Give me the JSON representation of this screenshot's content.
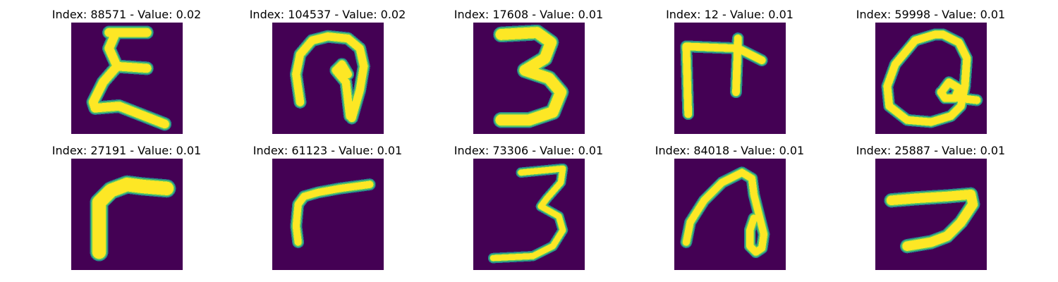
{
  "figure": {
    "panels": [
      {
        "title": "Index: 88571 - Value: 0.02",
        "glyph": "E"
      },
      {
        "title": "Index: 104537 - Value: 0.02",
        "glyph": "n"
      },
      {
        "title": "Index: 17608 - Value: 0.01",
        "glyph": "3"
      },
      {
        "title": "Index: 12 - Value: 0.01",
        "glyph": "F"
      },
      {
        "title": "Index: 59998 - Value: 0.01",
        "glyph": "Q"
      },
      {
        "title": "Index: 27191 - Value: 0.01",
        "glyph": "r"
      },
      {
        "title": "Index: 61123 - Value: 0.01",
        "glyph": "r"
      },
      {
        "title": "Index: 73306 - Value: 0.01",
        "glyph": "3"
      },
      {
        "title": "Index: 84018 - Value: 0.01",
        "glyph": "n"
      },
      {
        "title": "Index: 25887 - Value: 0.01",
        "glyph": "7"
      }
    ],
    "colors": {
      "background": "#ffffff",
      "image_background": "#440154",
      "stroke_core": "#fde725",
      "stroke_mid": "#5ec962",
      "stroke_halo": "#25858e"
    },
    "colormap": "viridis"
  }
}
